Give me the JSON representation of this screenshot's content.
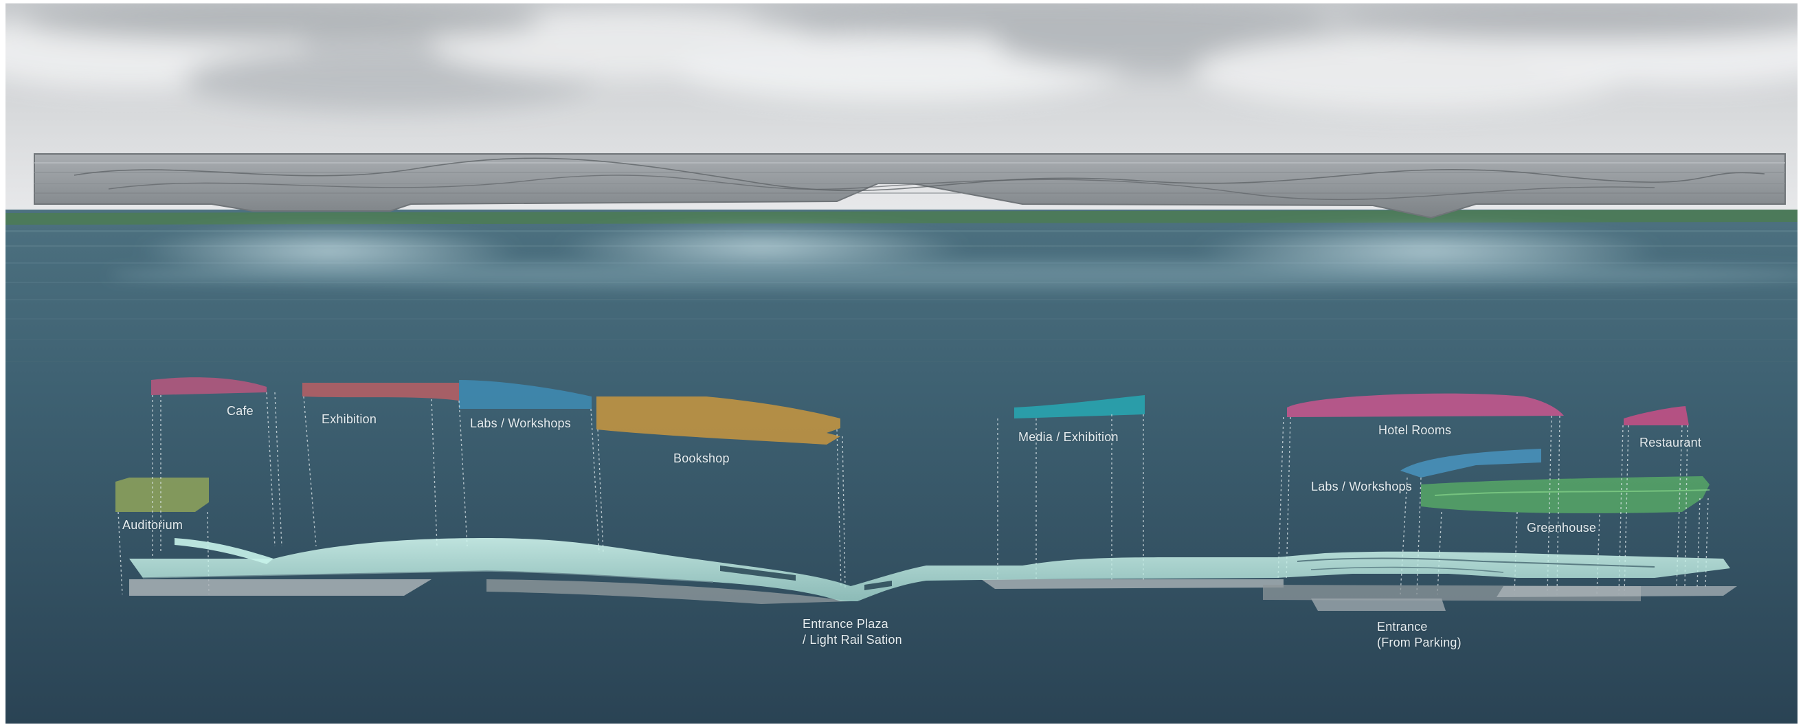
{
  "labels": {
    "cafe": "Cafe",
    "exhibition": "Exhibition",
    "labs_workshops_left": "Labs / Workshops",
    "bookshop": "Bookshop",
    "auditorium": "Auditorium",
    "media_exhibition": "Media / Exhibition",
    "hotel_rooms": "Hotel Rooms",
    "restaurant": "Restaurant",
    "labs_workshops_right": "Labs / Workshops",
    "greenhouse": "Greenhouse",
    "entrance_plaza_line1": "Entrance Plaza",
    "entrance_plaza_line2": "/ Light Rail Sation",
    "entrance_parking_line1": "Entrance",
    "entrance_parking_line2": "(From Parking)"
  },
  "colors": {
    "sky_top": "#c9cccf",
    "sky_bottom": "#e4e6e8",
    "water_top": "#476a78",
    "water_bottom": "#2d4656",
    "ground_strip": "#4c7a5a",
    "bridge_fill": "#9a9ea2",
    "circulation_path": "#bfeee6",
    "cafe_block": "#b9577e",
    "exhibition_block": "#b85f64",
    "labs_block": "#3f8fb8",
    "bookshop_block": "#d19a3c",
    "auditorium_block": "#8fa35a",
    "media_block": "#27a8b3",
    "hotel_block": "#c9568d",
    "restaurant_block": "#c94f86",
    "labs_right_block": "#4a97c4",
    "greenhouse_block": "#5fbf66"
  }
}
